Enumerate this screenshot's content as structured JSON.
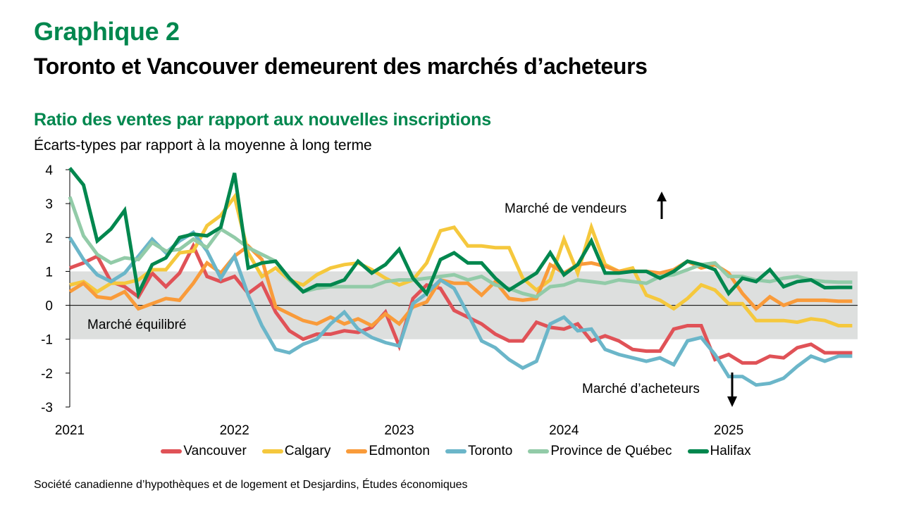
{
  "header": {
    "chart_number": "Graphique 2",
    "title": "Toronto et Vancouver demeurent des marchés d’acheteurs",
    "subtitle": "Ratio des ventes par rapport aux nouvelles inscriptions",
    "unit_label": "Écarts-types par rapport à la moyenne à long terme"
  },
  "source": "Société canadienne d’hypothèques et de logement et Desjardins, Études économiques",
  "chart_data": {
    "type": "line",
    "title": "Ratio des ventes par rapport aux nouvelles inscriptions",
    "ylabel": "Écarts-types par rapport à la moyenne à long terme",
    "xlabel": "",
    "frequency": "monthly",
    "x_start": "2021-01",
    "x_end": "2025-10",
    "ylim": [
      -3,
      4
    ],
    "yticks": [
      4,
      3,
      2,
      1,
      0,
      -1,
      -2,
      -3
    ],
    "xtick_labels": [
      "2021",
      "2022",
      "2023",
      "2024",
      "2025"
    ],
    "grid": false,
    "legend_position": "bottom",
    "band": {
      "from": -1,
      "to": 1,
      "color": "#DDDFDE",
      "label": "Marché équilibré"
    },
    "annotations": [
      {
        "text": "Marché de vendeurs",
        "arrow": "up"
      },
      {
        "text": "Marché d’acheteurs",
        "arrow": "down"
      }
    ],
    "series": [
      {
        "name": "Vancouver",
        "color": "#E05257",
        "values": [
          1.1,
          1.25,
          1.45,
          0.7,
          0.55,
          0.25,
          0.95,
          0.55,
          0.95,
          1.75,
          0.85,
          0.7,
          0.85,
          0.35,
          0.65,
          -0.2,
          -0.75,
          -1.0,
          -0.85,
          -0.85,
          -0.75,
          -0.8,
          -0.65,
          -0.2,
          -1.2,
          0.2,
          0.6,
          0.5,
          -0.15,
          -0.35,
          -0.55,
          -0.85,
          -1.05,
          -1.05,
          -0.5,
          -0.65,
          -0.7,
          -0.55,
          -1.05,
          -0.9,
          -1.05,
          -1.3,
          -1.35,
          -1.35,
          -0.7,
          -0.6,
          -0.6,
          -1.6,
          -1.45,
          -1.7,
          -1.7,
          -1.5,
          -1.55,
          -1.25,
          -1.15,
          -1.4,
          -1.4,
          -1.4
        ]
      },
      {
        "name": "Calgary",
        "color": "#F5C83D",
        "values": [
          0.6,
          0.7,
          0.4,
          0.65,
          0.65,
          0.75,
          1.05,
          1.05,
          1.55,
          1.6,
          2.35,
          2.65,
          3.2,
          1.55,
          0.85,
          1.1,
          0.75,
          0.6,
          0.9,
          1.1,
          1.2,
          1.25,
          1.05,
          0.8,
          0.6,
          0.75,
          1.25,
          2.2,
          2.3,
          1.75,
          1.75,
          1.7,
          1.7,
          0.8,
          0.45,
          0.75,
          1.95,
          0.95,
          2.3,
          1.2,
          1.0,
          1.1,
          0.3,
          0.15,
          -0.1,
          0.2,
          0.6,
          0.45,
          0.05,
          0.05,
          -0.45,
          -0.45,
          -0.45,
          -0.5,
          -0.4,
          -0.45,
          -0.6,
          -0.6
        ]
      },
      {
        "name": "Edmonton",
        "color": "#F99B3A",
        "values": [
          0.4,
          0.65,
          0.25,
          0.2,
          0.4,
          -0.1,
          0.05,
          0.2,
          0.15,
          0.65,
          1.25,
          0.95,
          1.45,
          1.75,
          1.35,
          -0.05,
          -0.25,
          -0.45,
          -0.55,
          -0.35,
          -0.55,
          -0.4,
          -0.6,
          -0.25,
          -0.55,
          -0.05,
          0.1,
          0.75,
          0.65,
          0.65,
          0.3,
          0.7,
          0.2,
          0.15,
          0.2,
          1.2,
          0.95,
          1.2,
          1.25,
          1.15,
          1.0,
          1.0,
          1.0,
          0.95,
          1.05,
          1.3,
          1.1,
          1.2,
          0.95,
          0.35,
          -0.1,
          0.25,
          0.0,
          0.15,
          0.15,
          0.15,
          0.12,
          0.12
        ]
      },
      {
        "name": "Toronto",
        "color": "#6BB6C9",
        "values": [
          2.0,
          1.35,
          0.9,
          0.7,
          0.95,
          1.45,
          1.95,
          1.55,
          1.9,
          2.15,
          1.6,
          0.8,
          1.45,
          0.3,
          -0.6,
          -1.3,
          -1.4,
          -1.15,
          -1.0,
          -0.55,
          -0.2,
          -0.7,
          -0.95,
          -1.1,
          -1.2,
          0.05,
          0.35,
          0.75,
          0.5,
          -0.25,
          -1.05,
          -1.25,
          -1.6,
          -1.85,
          -1.65,
          -0.55,
          -0.35,
          -0.75,
          -0.7,
          -1.3,
          -1.45,
          -1.55,
          -1.65,
          -1.55,
          -1.75,
          -1.05,
          -0.95,
          -1.45,
          -2.1,
          -2.1,
          -2.35,
          -2.3,
          -2.15,
          -1.8,
          -1.5,
          -1.65,
          -1.5,
          -1.5
        ]
      },
      {
        "name": "Province de Québec",
        "color": "#92CBA8",
        "values": [
          3.2,
          2.05,
          1.5,
          1.25,
          1.4,
          1.35,
          1.85,
          1.6,
          1.65,
          1.95,
          1.7,
          2.25,
          2.0,
          1.7,
          1.5,
          1.3,
          0.75,
          0.4,
          0.5,
          0.55,
          0.55,
          0.55,
          0.55,
          0.7,
          0.75,
          0.75,
          0.8,
          0.85,
          0.9,
          0.75,
          0.85,
          0.6,
          0.5,
          0.35,
          0.25,
          0.55,
          0.6,
          0.75,
          0.7,
          0.65,
          0.75,
          0.7,
          0.65,
          0.85,
          0.9,
          1.05,
          1.2,
          1.25,
          0.85,
          0.85,
          0.75,
          0.7,
          0.8,
          0.85,
          0.75,
          0.7,
          0.68,
          0.68
        ]
      },
      {
        "name": "Halifax",
        "color": "#00874E",
        "values": [
          4.05,
          3.55,
          1.9,
          2.25,
          2.8,
          0.35,
          1.2,
          1.4,
          2.0,
          2.1,
          2.05,
          2.3,
          3.9,
          1.1,
          1.25,
          1.3,
          0.8,
          0.4,
          0.6,
          0.6,
          0.75,
          1.3,
          0.95,
          1.2,
          1.65,
          0.8,
          0.35,
          1.35,
          1.55,
          1.25,
          1.25,
          0.8,
          0.45,
          0.7,
          0.95,
          1.55,
          0.9,
          1.2,
          1.9,
          0.95,
          0.95,
          1.0,
          1.0,
          0.8,
          1.0,
          1.3,
          1.2,
          1.05,
          0.35,
          0.8,
          0.7,
          1.05,
          0.55,
          0.7,
          0.75,
          0.52,
          0.53,
          0.53
        ]
      }
    ]
  }
}
